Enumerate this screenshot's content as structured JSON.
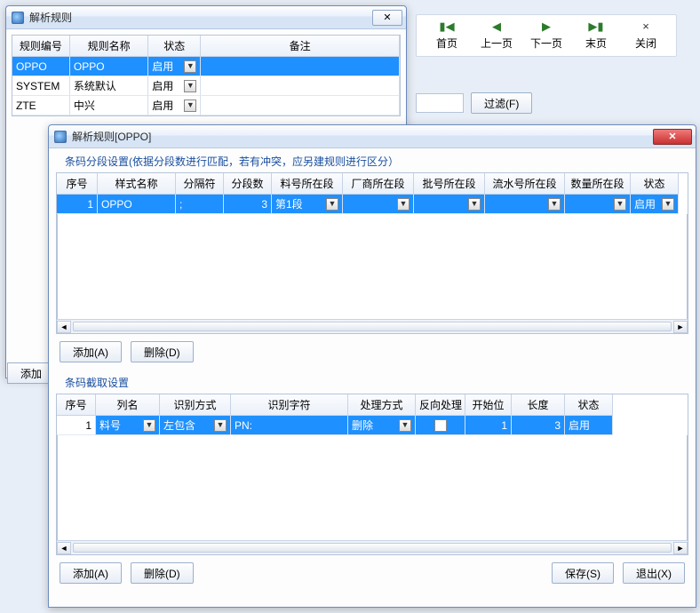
{
  "colors": {
    "selection": "#1e90ff",
    "window_border": "#6b8bbd",
    "header_gradient_top": "#fbfcfe",
    "header_gradient_bottom": "#eaf0f9"
  },
  "nav": {
    "first": {
      "glyph": "▮◀",
      "label": "首页"
    },
    "prev": {
      "glyph": "◀",
      "label": "上一页"
    },
    "next": {
      "glyph": "▶",
      "label": "下一页"
    },
    "last": {
      "glyph": "▶▮",
      "label": "末页"
    },
    "close": {
      "glyph": "×",
      "label": "关闭"
    }
  },
  "filter_button": "过滤(F)",
  "outer_window": {
    "title": "解析规则",
    "columns": [
      "规则编号",
      "规则名称",
      "状态",
      "备注"
    ],
    "rows": [
      {
        "id": "OPPO",
        "name": "OPPO",
        "status": "启用",
        "remark": "",
        "selected": true
      },
      {
        "id": "SYSTEM",
        "name": "系统默认",
        "status": "启用",
        "remark": "",
        "selected": false
      },
      {
        "id": "ZTE",
        "name": "中兴",
        "status": "启用",
        "remark": "",
        "selected": false
      }
    ],
    "add_button_partial": "添加"
  },
  "detail_window": {
    "title": "解析规则[OPPO]",
    "section1": {
      "title": "条码分段设置(依据分段数进行匹配，若有冲突，应另建规则进行区分）",
      "columns": [
        "序号",
        "样式名称",
        "分隔符",
        "分段数",
        "料号所在段",
        "厂商所在段",
        "批号所在段",
        "流水号所在段",
        "数量所在段",
        "状态"
      ],
      "row": {
        "seq": "1",
        "style": "OPPO",
        "delimiter": ";",
        "segcount": "3",
        "part_seg": "第1段",
        "vendor_seg": "",
        "lot_seg": "",
        "serial_seg": "",
        "qty_seg": "",
        "status": "启用"
      },
      "add": "添加(A)",
      "del": "删除(D)"
    },
    "section2": {
      "title": "条码截取设置",
      "columns": [
        "序号",
        "列名",
        "识别方式",
        "识别字符",
        "处理方式",
        "反向处理",
        "开始位",
        "长度",
        "状态"
      ],
      "row": {
        "seq": "1",
        "col": "料号",
        "rec_mode": "左包含",
        "rec_char": "PN:",
        "proc": "删除",
        "reverse": false,
        "start": "1",
        "len": "3",
        "status": "启用"
      },
      "add": "添加(A)",
      "del": "删除(D)",
      "save": "保存(S)",
      "exit": "退出(X)"
    }
  }
}
